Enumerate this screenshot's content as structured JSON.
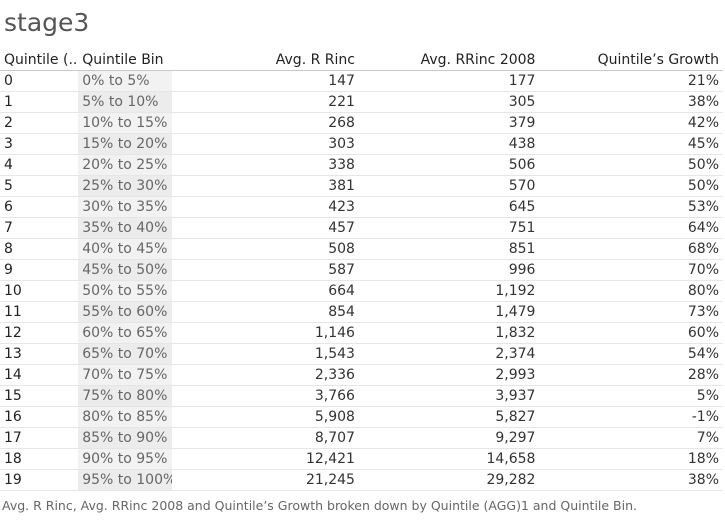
{
  "title": "stage3",
  "caption": "Avg. R Rinc, Avg. RRinc 2008 and Quintile’s Growth broken down by Quintile (AGG)1 and Quintile Bin.",
  "chart_data": {
    "type": "table",
    "title": "stage3",
    "columns": [
      "Quintile (..",
      "Quintile Bin",
      "Avg. R Rinc",
      "Avg. RRinc 2008",
      "Quintile’s Growth"
    ],
    "rows": [
      [
        "0",
        "0% to 5%",
        "147",
        "177",
        "21%"
      ],
      [
        "1",
        "5% to 10%",
        "221",
        "305",
        "38%"
      ],
      [
        "2",
        "10% to 15%",
        "268",
        "379",
        "42%"
      ],
      [
        "3",
        "15% to 20%",
        "303",
        "438",
        "45%"
      ],
      [
        "4",
        "20% to 25%",
        "338",
        "506",
        "50%"
      ],
      [
        "5",
        "25% to 30%",
        "381",
        "570",
        "50%"
      ],
      [
        "6",
        "30% to 35%",
        "423",
        "645",
        "53%"
      ],
      [
        "7",
        "35% to 40%",
        "457",
        "751",
        "64%"
      ],
      [
        "8",
        "40% to 45%",
        "508",
        "851",
        "68%"
      ],
      [
        "9",
        "45% to 50%",
        "587",
        "996",
        "70%"
      ],
      [
        "10",
        "50% to 55%",
        "664",
        "1,192",
        "80%"
      ],
      [
        "11",
        "55% to 60%",
        "854",
        "1,479",
        "73%"
      ],
      [
        "12",
        "60% to 65%",
        "1,146",
        "1,832",
        "60%"
      ],
      [
        "13",
        "65% to 70%",
        "1,543",
        "2,374",
        "54%"
      ],
      [
        "14",
        "70% to 75%",
        "2,336",
        "2,993",
        "28%"
      ],
      [
        "15",
        "75% to 80%",
        "3,766",
        "3,937",
        "5%"
      ],
      [
        "16",
        "80% to 85%",
        "5,908",
        "5,827",
        "-1%"
      ],
      [
        "17",
        "85% to 90%",
        "8,707",
        "9,297",
        "7%"
      ],
      [
        "18",
        "90% to 95%",
        "12,421",
        "14,658",
        "18%"
      ],
      [
        "19",
        "95% to 100%",
        "21,245",
        "29,282",
        "38%"
      ]
    ]
  }
}
